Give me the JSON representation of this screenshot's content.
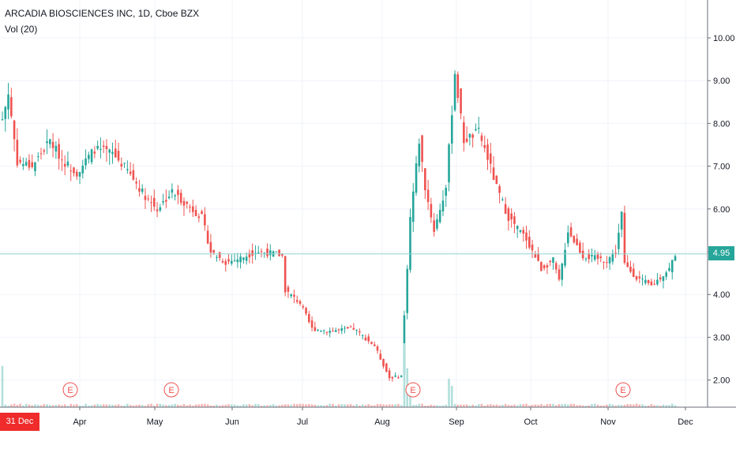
{
  "header": {
    "title": "ARCADIA BIOSCIENCES INC, 1D, Cboe BZX",
    "volume_label": "Vol (20)"
  },
  "last_price": "4.95",
  "crosshair_date": "31 Dec '18",
  "colors": {
    "up": "#26a69a",
    "down": "#ef5350",
    "vol_up": "#b2dfdb",
    "vol_down": "#f7b6b5",
    "price_line": "#8fd3d0"
  },
  "chart_data": {
    "type": "candlestick",
    "title": "ARCADIA BIOSCIENCES INC, 1D, Cboe BZX",
    "y_ticks": [
      "10.00",
      "9.00",
      "8.00",
      "7.00",
      "6.00",
      "5.00",
      "4.00",
      "3.00",
      "2.00"
    ],
    "x_ticks": [
      "Apr",
      "May",
      "Jun",
      "Jul",
      "Aug",
      "Sep",
      "Oct",
      "Nov",
      "Dec"
    ],
    "ylim": [
      1.1,
      10.8
    ],
    "earnings_markers": [
      "E",
      "E",
      "E",
      "E"
    ],
    "last_price": 4.95,
    "close_anchors": [
      [
        0,
        8.1
      ],
      [
        2,
        8.7
      ],
      [
        5,
        7.1
      ],
      [
        10,
        7.0
      ],
      [
        16,
        7.6
      ],
      [
        20,
        7.15
      ],
      [
        25,
        6.85
      ],
      [
        31,
        7.4
      ],
      [
        37,
        7.3
      ],
      [
        42,
        6.9
      ],
      [
        48,
        6.3
      ],
      [
        52,
        6.0
      ],
      [
        57,
        6.4
      ],
      [
        62,
        6.1
      ],
      [
        67,
        5.8
      ],
      [
        70,
        5.0
      ],
      [
        75,
        4.75
      ],
      [
        80,
        4.85
      ],
      [
        85,
        5.0
      ],
      [
        92,
        4.95
      ],
      [
        94,
        4.9
      ],
      [
        95,
        4.1
      ],
      [
        100,
        3.8
      ],
      [
        104,
        3.2
      ],
      [
        110,
        3.15
      ],
      [
        118,
        3.2
      ],
      [
        125,
        2.8
      ],
      [
        130,
        2.05
      ],
      [
        134,
        2.1
      ],
      [
        135,
        3.5
      ],
      [
        137,
        5.8
      ],
      [
        140,
        7.6
      ],
      [
        142,
        6.5
      ],
      [
        145,
        5.5
      ],
      [
        149,
        6.5
      ],
      [
        152,
        9.2
      ],
      [
        155,
        7.6
      ],
      [
        160,
        7.8
      ],
      [
        163,
        7.2
      ],
      [
        166,
        6.5
      ],
      [
        170,
        5.8
      ],
      [
        176,
        5.3
      ],
      [
        181,
        4.6
      ],
      [
        185,
        4.8
      ],
      [
        187,
        4.3
      ],
      [
        190,
        5.5
      ],
      [
        195,
        4.9
      ],
      [
        203,
        4.8
      ],
      [
        206,
        5.0
      ],
      [
        208,
        5.9
      ],
      [
        209,
        4.7
      ],
      [
        213,
        4.4
      ],
      [
        218,
        4.2
      ],
      [
        224,
        4.6
      ],
      [
        226,
        4.95
      ]
    ],
    "volume_spikes": [
      [
        0,
        0.58
      ],
      [
        135,
        0.9
      ],
      [
        136,
        0.55
      ],
      [
        150,
        0.4
      ],
      [
        151,
        0.3
      ],
      [
        137,
        0.25
      ]
    ]
  }
}
